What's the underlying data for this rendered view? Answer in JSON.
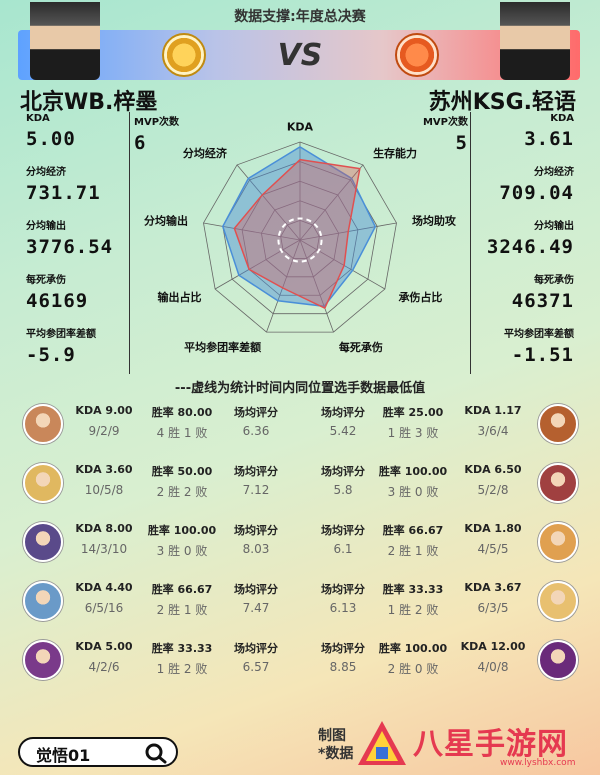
{
  "header": {
    "title": "数据支撑:年度总决赛",
    "vs": "VS"
  },
  "left_player": {
    "name": "北京WB.梓墨",
    "mvp_label": "MVP次数",
    "mvp": "6",
    "stats": [
      {
        "label": "KDA",
        "value": "5.00"
      },
      {
        "label": "分均经济",
        "value": "731.71"
      },
      {
        "label": "分均输出",
        "value": "3776.54"
      },
      {
        "label": "每死承伤",
        "value": "46169"
      },
      {
        "label": "平均参团率差额",
        "value": "-5.9"
      }
    ]
  },
  "right_player": {
    "name": "苏州KSG.轻语",
    "mvp_label": "MVP次数",
    "mvp": "5",
    "stats": [
      {
        "label": "KDA",
        "value": "3.61"
      },
      {
        "label": "分均经济",
        "value": "709.04"
      },
      {
        "label": "分均输出",
        "value": "3246.49"
      },
      {
        "label": "每死承伤",
        "value": "46371"
      },
      {
        "label": "平均参团率差额",
        "value": "-1.51"
      }
    ]
  },
  "chart_data": {
    "type": "radar",
    "axes": [
      "KDA",
      "生存能力",
      "场均助攻",
      "承伤占比",
      "每死承伤",
      "平均参团率差额",
      "输出占比",
      "分均输出",
      "分均经济"
    ],
    "series": [
      {
        "color": "#4a8fd8",
        "values": [
          0.95,
          0.82,
          0.78,
          0.62,
          0.72,
          0.66,
          0.72,
          0.8,
          0.82
        ]
      },
      {
        "color": "#e05050",
        "values": [
          0.82,
          0.95,
          0.5,
          0.52,
          0.74,
          0.52,
          0.6,
          0.68,
          0.6
        ]
      }
    ],
    "min_line_level": 0.22
  },
  "colors": {
    "left_series": "#4a8fd8",
    "right_series": "#e05050"
  },
  "note": "---虚线为统计时间内同位置选手数据最低值",
  "heroes": [
    {
      "left": {
        "kda": "KDA 9.00",
        "kda_detail": "9/2/9",
        "win_rate": "胜率 80.00",
        "record": "4 胜 1 败",
        "score_label": "场均评分",
        "score": "6.36",
        "avatar": "#c9875a"
      },
      "right": {
        "score_label": "场均评分",
        "score": "5.42",
        "win_rate": "胜率 25.00",
        "record": "1 胜 3 败",
        "kda": "KDA 1.17",
        "kda_detail": "3/6/4",
        "avatar": "#b5602f"
      }
    },
    {
      "left": {
        "kda": "KDA 3.60",
        "kda_detail": "10/5/8",
        "win_rate": "胜率 50.00",
        "record": "2 胜 2 败",
        "score_label": "场均评分",
        "score": "7.12",
        "avatar": "#e0b860"
      },
      "right": {
        "score_label": "场均评分",
        "score": "5.8",
        "win_rate": "胜率 100.00",
        "record": "3 胜 0 败",
        "kda": "KDA 6.50",
        "kda_detail": "5/2/8",
        "avatar": "#a04040"
      }
    },
    {
      "left": {
        "kda": "KDA 8.00",
        "kda_detail": "14/3/10",
        "win_rate": "胜率 100.00",
        "record": "3 胜 0 败",
        "score_label": "场均评分",
        "score": "8.03",
        "avatar": "#5a4a8a"
      },
      "right": {
        "score_label": "场均评分",
        "score": "6.1",
        "win_rate": "胜率 66.67",
        "record": "2 胜 1 败",
        "kda": "KDA 1.80",
        "kda_detail": "4/5/5",
        "avatar": "#e0a050"
      }
    },
    {
      "left": {
        "kda": "KDA 4.40",
        "kda_detail": "6/5/16",
        "win_rate": "胜率 66.67",
        "record": "2 胜 1 败",
        "score_label": "场均评分",
        "score": "7.47",
        "avatar": "#6a9ac8"
      },
      "right": {
        "score_label": "场均评分",
        "score": "6.13",
        "win_rate": "胜率 33.33",
        "record": "1 胜 2 败",
        "kda": "KDA 3.67",
        "kda_detail": "6/3/5",
        "avatar": "#e8c070"
      }
    },
    {
      "left": {
        "kda": "KDA 5.00",
        "kda_detail": "4/2/6",
        "win_rate": "胜率 33.33",
        "record": "1 胜 2 败",
        "score_label": "场均评分",
        "score": "6.57",
        "avatar": "#7a3a8a"
      },
      "right": {
        "score_label": "场均评分",
        "score": "8.85",
        "win_rate": "胜率 100.00",
        "record": "2 胜 0 败",
        "kda": "KDA 12.00",
        "kda_detail": "4/0/8",
        "avatar": "#6a2a7a"
      }
    }
  ],
  "footer": {
    "search_label": "觉悟01",
    "credit_line1": "制图",
    "credit_line2": "*数据",
    "watermark": "八星手游网",
    "watermark_url": "www.lyshbx.com"
  }
}
